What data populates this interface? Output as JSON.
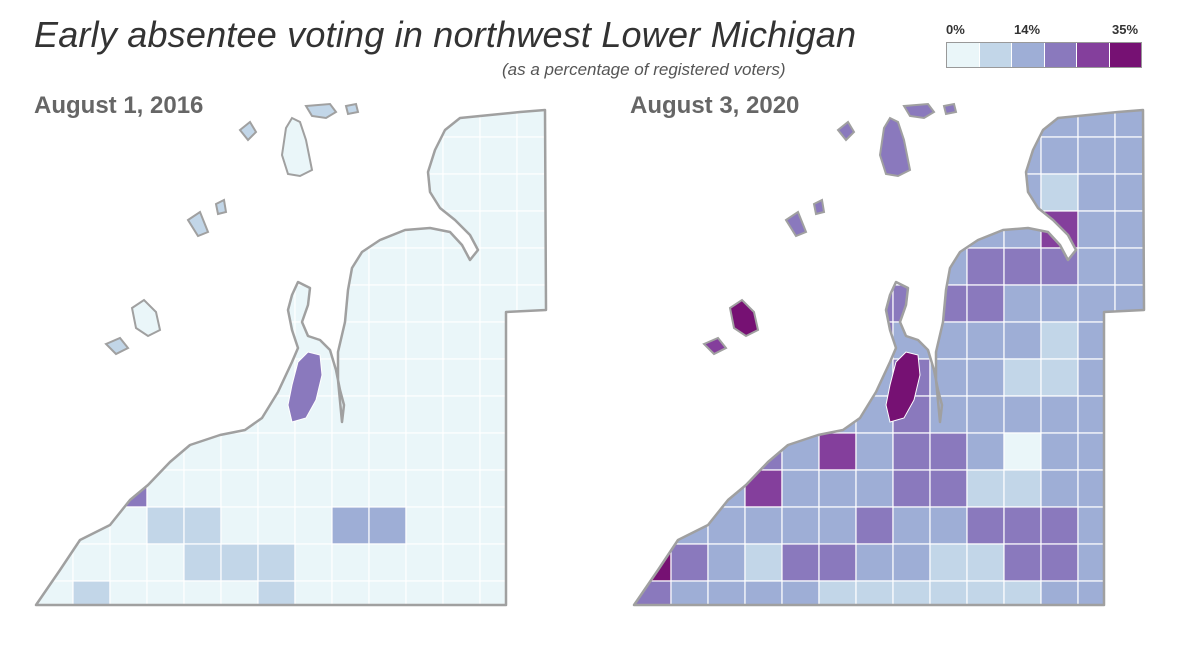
{
  "title": "Early absentee voting in northwest Lower Michigan",
  "subtitle": "(as a percentage of registered voters)",
  "legend": {
    "ticks": [
      {
        "label": "0%",
        "value": 0
      },
      {
        "label": "14%",
        "value": 14
      },
      {
        "label": "35%",
        "value": 35
      }
    ],
    "colors": [
      "#eaf6f9",
      "#c2d6e8",
      "#9eaed6",
      "#8a79bd",
      "#843f9c",
      "#761173"
    ]
  },
  "panels": [
    {
      "id": "2016",
      "label": "August 1, 2016",
      "default_class": 0,
      "regions": [
        {
          "col": 6,
          "row": 0,
          "class": 1
        },
        {
          "col": 6,
          "row": 4,
          "class": 1
        },
        {
          "col": 5,
          "row": 4,
          "class": 1
        },
        {
          "col": 4,
          "row": 5,
          "class": 2
        },
        {
          "col": 3,
          "row": 5,
          "class": 1
        },
        {
          "col": 3,
          "row": 6,
          "class": 1
        },
        {
          "col": 1,
          "row": 8,
          "class": 1
        },
        {
          "col": 2,
          "row": 10,
          "class": 3
        },
        {
          "col": 3,
          "row": 11,
          "class": 1
        },
        {
          "col": 4,
          "row": 11,
          "class": 1
        },
        {
          "col": 8,
          "row": 11,
          "class": 2
        },
        {
          "col": 9,
          "row": 11,
          "class": 2
        },
        {
          "col": 0,
          "row": 11,
          "class": 1
        },
        {
          "col": 5,
          "row": 12,
          "class": 1
        },
        {
          "col": 6,
          "row": 12,
          "class": 1
        },
        {
          "col": 4,
          "row": 12,
          "class": 1
        },
        {
          "col": 1,
          "row": 13,
          "class": 1
        },
        {
          "col": 6,
          "row": 13,
          "class": 1
        },
        {
          "col": 2,
          "row": 15,
          "class": 1
        },
        {
          "col": 8,
          "row": 15,
          "class": 1
        },
        {
          "col": 9,
          "row": 15,
          "class": 1
        },
        {
          "col": 0,
          "row": 16,
          "class": 1
        },
        {
          "col": 8,
          "row": 16,
          "class": 1
        },
        {
          "col": 11,
          "row": 17,
          "class": 1
        }
      ]
    },
    {
      "id": "2020",
      "label": "August 3, 2020",
      "default_class": 2,
      "regions": [
        {
          "col": 1,
          "row": 9,
          "class": 5
        },
        {
          "col": 2,
          "row": 9,
          "class": 5
        },
        {
          "col": 0,
          "row": 12,
          "class": 5
        },
        {
          "col": 1,
          "row": 10,
          "class": 4
        },
        {
          "col": 0,
          "row": 10,
          "class": 4
        },
        {
          "col": 3,
          "row": 10,
          "class": 4
        },
        {
          "col": 0,
          "row": 13,
          "class": 3
        },
        {
          "col": 0,
          "row": 14,
          "class": 4
        },
        {
          "col": 0,
          "row": 17,
          "class": 5
        },
        {
          "col": 0,
          "row": 16,
          "class": 3
        },
        {
          "col": 1,
          "row": 16,
          "class": 3
        },
        {
          "col": 3,
          "row": 9,
          "class": 3
        },
        {
          "col": 4,
          "row": 8,
          "class": 4
        },
        {
          "col": 5,
          "row": 9,
          "class": 4
        },
        {
          "col": 6,
          "row": 5,
          "class": 3
        },
        {
          "col": 7,
          "row": 5,
          "class": 3
        },
        {
          "col": 8,
          "row": 5,
          "class": 3
        },
        {
          "col": 9,
          "row": 5,
          "class": 3
        },
        {
          "col": 6,
          "row": 6,
          "class": 3
        },
        {
          "col": 7,
          "row": 7,
          "class": 3
        },
        {
          "col": 7,
          "row": 8,
          "class": 3
        },
        {
          "col": 7,
          "row": 9,
          "class": 3
        },
        {
          "col": 8,
          "row": 9,
          "class": 3
        },
        {
          "col": 7,
          "row": 10,
          "class": 3
        },
        {
          "col": 8,
          "row": 10,
          "class": 3
        },
        {
          "col": 6,
          "row": 11,
          "class": 3
        },
        {
          "col": 9,
          "row": 11,
          "class": 3
        },
        {
          "col": 10,
          "row": 11,
          "class": 3
        },
        {
          "col": 10,
          "row": 12,
          "class": 3
        },
        {
          "col": 11,
          "row": 3,
          "class": 4
        },
        {
          "col": 9,
          "row": 4,
          "class": 3
        },
        {
          "col": 10,
          "row": 4,
          "class": 3
        },
        {
          "col": 11,
          "row": 4,
          "class": 3
        },
        {
          "col": 1,
          "row": 12,
          "class": 3
        },
        {
          "col": 4,
          "row": 12,
          "class": 3
        },
        {
          "col": 5,
          "row": 12,
          "class": 3
        },
        {
          "col": 11,
          "row": 17,
          "class": 3
        },
        {
          "col": 11,
          "row": 14,
          "class": 3
        },
        {
          "col": 11,
          "row": 12,
          "class": 3
        },
        {
          "col": 11,
          "row": 11,
          "class": 3
        },
        {
          "col": 10,
          "row": 9,
          "class": 0
        },
        {
          "col": 7,
          "row": 4,
          "class": 0
        },
        {
          "col": 3,
          "row": 12,
          "class": 1
        },
        {
          "col": 5,
          "row": 13,
          "class": 1
        },
        {
          "col": 6,
          "row": 13,
          "class": 1
        },
        {
          "col": 7,
          "row": 13,
          "class": 1
        },
        {
          "col": 8,
          "row": 13,
          "class": 1
        },
        {
          "col": 9,
          "row": 13,
          "class": 1
        },
        {
          "col": 10,
          "row": 13,
          "class": 1
        },
        {
          "col": 3,
          "row": 14,
          "class": 1
        },
        {
          "col": 5,
          "row": 14,
          "class": 1
        },
        {
          "col": 6,
          "row": 14,
          "class": 1
        },
        {
          "col": 7,
          "row": 15,
          "class": 0
        },
        {
          "col": 8,
          "row": 15,
          "class": 0
        },
        {
          "col": 4,
          "row": 16,
          "class": 0
        },
        {
          "col": 9,
          "row": 15,
          "class": 1
        },
        {
          "col": 10,
          "row": 15,
          "class": 1
        },
        {
          "col": 11,
          "row": 15,
          "class": 1
        },
        {
          "col": 5,
          "row": 16,
          "class": 1
        },
        {
          "col": 6,
          "row": 16,
          "class": 1
        },
        {
          "col": 9,
          "row": 16,
          "class": 1
        },
        {
          "col": 8,
          "row": 17,
          "class": 1
        },
        {
          "col": 9,
          "row": 17,
          "class": 1
        },
        {
          "col": 10,
          "row": 17,
          "class": 1
        },
        {
          "col": 11,
          "row": 16,
          "class": 1
        },
        {
          "col": 10,
          "row": 10,
          "class": 1
        },
        {
          "col": 9,
          "row": 10,
          "class": 1
        },
        {
          "col": 9,
          "row": 12,
          "class": 1
        },
        {
          "col": 8,
          "row": 12,
          "class": 1
        },
        {
          "col": 11,
          "row": 2,
          "class": 1
        },
        {
          "col": 11,
          "row": 6,
          "class": 1
        },
        {
          "col": 11,
          "row": 7,
          "class": 1
        },
        {
          "col": 10,
          "row": 7,
          "class": 1
        }
      ]
    }
  ]
}
